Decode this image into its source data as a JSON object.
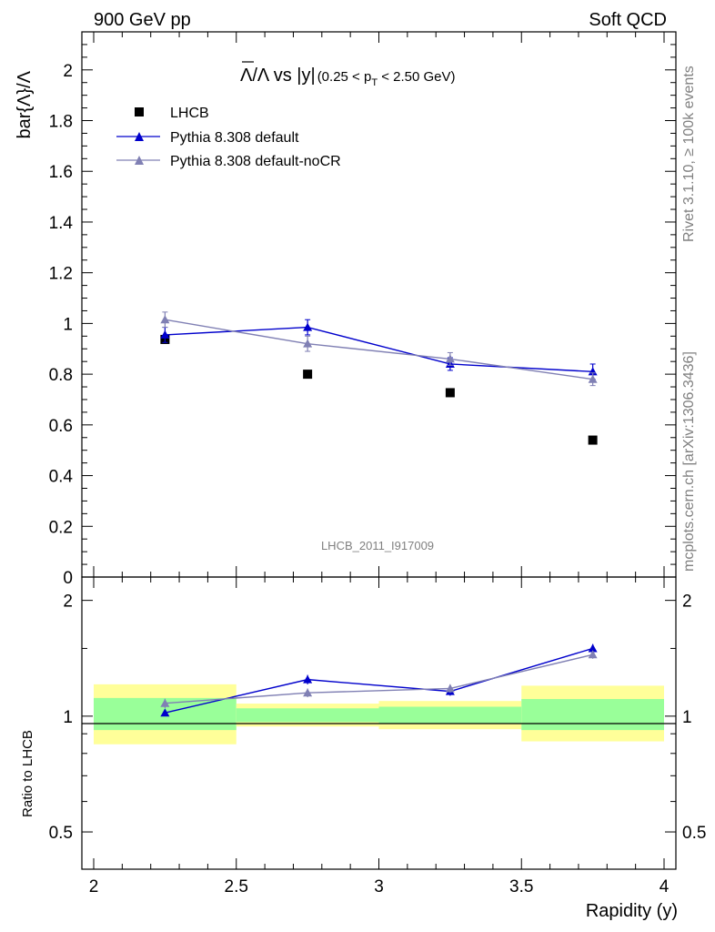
{
  "header": {
    "left": "900 GeV pp",
    "right": "Soft QCD"
  },
  "plot_title": {
    "main": "Λ/Λ vs |y|",
    "cut_prefix": "(0.25 < p",
    "cut_sub": "T",
    "cut_suffix": " < 2.50 GeV)"
  },
  "watermark": "LHCB_2011_I917009",
  "side_text": {
    "rivet": "Rivet 3.1.10, ≥ 100k events",
    "mcplots": "mcplots.cern.ch [arXiv:1306.3436]"
  },
  "colors": {
    "data": "#000000",
    "default": "#0000cc",
    "nocr": "#8080b4",
    "band_inner": "#99ff99",
    "band_outer": "#ffff99"
  },
  "chart_data": [
    {
      "type": "scatter",
      "panel": "main",
      "ylabel": "bar{Λ}/Λ",
      "xlim": [
        2,
        4
      ],
      "ylim": [
        0,
        2.15
      ],
      "yticks": [
        0,
        0.2,
        0.4,
        0.6,
        0.8,
        1,
        1.2,
        1.4,
        1.6,
        1.8,
        2
      ],
      "ytick_labels": [
        "0",
        "0.2",
        "0.4",
        "0.6",
        "0.8",
        "1",
        "1.2",
        "1.4",
        "1.6",
        "1.8",
        "2"
      ],
      "legend_position": "top-left",
      "x": [
        2.25,
        2.75,
        3.25,
        3.75
      ],
      "series": [
        {
          "name": "LHCB",
          "style": "square",
          "values": [
            0.937,
            0.8,
            0.727,
            0.54
          ],
          "errors": [
            0.01,
            0.01,
            0.01,
            0.01
          ]
        },
        {
          "name": "Pythia 8.308 default",
          "style": "line-triangle",
          "values": [
            0.955,
            0.985,
            0.84,
            0.81
          ],
          "errors": [
            0.03,
            0.03,
            0.025,
            0.03
          ]
        },
        {
          "name": "Pythia 8.308 default-noCR",
          "style": "line-triangle",
          "values": [
            1.015,
            0.92,
            0.86,
            0.78
          ],
          "errors": [
            0.03,
            0.03,
            0.025,
            0.025
          ]
        }
      ]
    },
    {
      "type": "line",
      "panel": "ratio",
      "ylabel": "Ratio to LHCB",
      "xlabel": "Rapidity (y)",
      "xlim": [
        2,
        4
      ],
      "ylim": [
        0.4,
        2.3
      ],
      "y_scale": "log",
      "xticks": [
        2,
        2.5,
        3,
        3.5,
        4
      ],
      "xtick_labels": [
        "2",
        "2.5",
        "3",
        "3.5",
        "4"
      ],
      "yticks": [
        0.5,
        1,
        2
      ],
      "ytick_labels": [
        "0.5",
        "1",
        "2"
      ],
      "bands": [
        {
          "x_range": [
            2.0,
            2.5
          ],
          "inner": [
            0.92,
            1.115
          ],
          "outer": [
            0.845,
            1.21
          ]
        },
        {
          "x_range": [
            2.5,
            3.0
          ],
          "inner": [
            0.965,
            1.048
          ],
          "outer": [
            0.94,
            1.078
          ]
        },
        {
          "x_range": [
            3.0,
            3.5
          ],
          "inner": [
            0.955,
            1.058
          ],
          "outer": [
            0.925,
            1.095
          ]
        },
        {
          "x_range": [
            3.5,
            4.0
          ],
          "inner": [
            0.92,
            1.108
          ],
          "outer": [
            0.86,
            1.2
          ]
        }
      ],
      "x": [
        2.25,
        2.75,
        3.25,
        3.75
      ],
      "series": [
        {
          "name": "Pythia 8.308 default",
          "values": [
            1.02,
            1.245,
            1.16,
            1.5
          ],
          "errors": [
            0.02,
            0.035,
            0.03,
            0.04
          ]
        },
        {
          "name": "Pythia 8.308 default-noCR",
          "values": [
            1.08,
            1.15,
            1.18,
            1.445
          ],
          "errors": [
            0.03,
            0.03,
            0.03,
            0.035
          ]
        }
      ]
    }
  ]
}
